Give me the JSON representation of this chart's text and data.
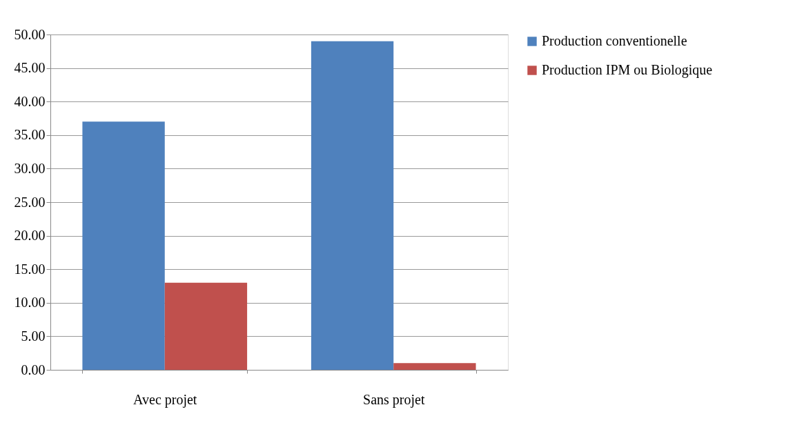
{
  "chart_data": {
    "type": "bar",
    "categories": [
      "Avec projet",
      "Sans projet"
    ],
    "series": [
      {
        "name": "Production conventionelle",
        "color": "#4f81bd",
        "values": [
          37,
          49
        ]
      },
      {
        "name": "Production IPM ou Biologique",
        "color": "#c0504d",
        "values": [
          13,
          1
        ]
      }
    ],
    "ylim": [
      0,
      50
    ],
    "yticks": [
      {
        "value": 0,
        "label": "0.00"
      },
      {
        "value": 5,
        "label": "5.00"
      },
      {
        "value": 10,
        "label": "10.00"
      },
      {
        "value": 15,
        "label": "15.00"
      },
      {
        "value": 20,
        "label": "20.00"
      },
      {
        "value": 25,
        "label": "25.00"
      },
      {
        "value": 30,
        "label": "30.00"
      },
      {
        "value": 35,
        "label": "35.00"
      },
      {
        "value": 40,
        "label": "40.00"
      },
      {
        "value": 45,
        "label": "45.00"
      },
      {
        "value": 50,
        "label": "50.00"
      }
    ],
    "grid": "y",
    "legend": "right"
  }
}
